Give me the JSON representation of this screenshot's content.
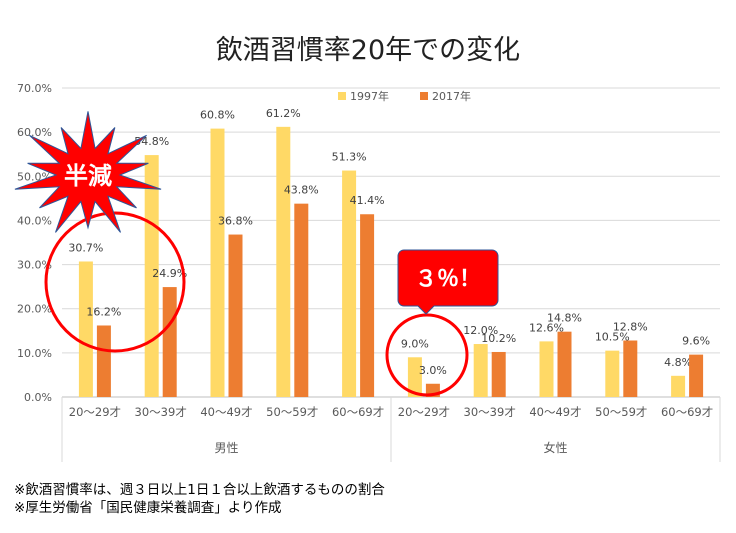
{
  "chart_data": {
    "type": "bar",
    "title": "飲酒習慣率20年での変化",
    "categories": [
      "20〜29才",
      "30〜39才",
      "40〜49才",
      "50〜59才",
      "60〜69才",
      "20〜29才",
      "30〜39才",
      "40〜49才",
      "50〜59才",
      "60〜69才"
    ],
    "groups": [
      {
        "label": "男性",
        "count": 5
      },
      {
        "label": "女性",
        "count": 5
      }
    ],
    "series": [
      {
        "name": "1997年",
        "color": "#FFD966",
        "values": [
          30.7,
          54.8,
          60.8,
          61.2,
          51.3,
          9.0,
          12.0,
          12.6,
          10.5,
          4.8
        ]
      },
      {
        "name": "2017年",
        "color": "#ED7D31",
        "values": [
          16.2,
          24.9,
          36.8,
          43.8,
          41.4,
          3.0,
          10.2,
          14.8,
          12.8,
          9.6
        ]
      }
    ],
    "yticks": [
      "0.0%",
      "10.0%",
      "20.0%",
      "30.0%",
      "40.0%",
      "50.0%",
      "60.0%",
      "70.0%"
    ],
    "ylim": [
      0,
      70
    ],
    "grid": true,
    "legend": "top",
    "annotations": {
      "burst": "半減",
      "callout": "３％！"
    }
  },
  "notes": [
    "※飲酒習慣率は、週３日以上1日１合以上飲酒するものの割合",
    "※厚生労働省「国民健康栄養調査」より作成"
  ]
}
